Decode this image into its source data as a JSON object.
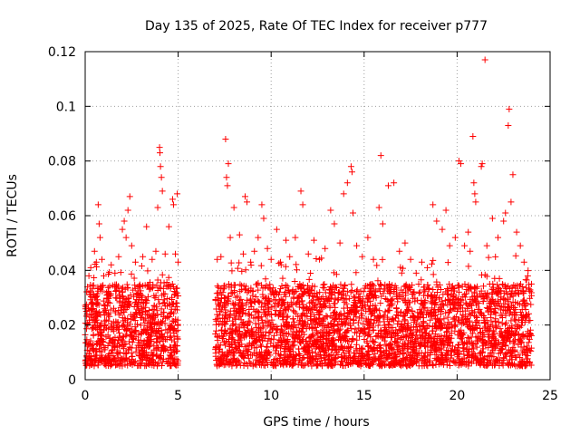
{
  "chart_data": {
    "type": "scatter",
    "title": "Day 135 of 2025, Rate Of TEC Index for receiver p777",
    "xlabel": "GPS time / hours",
    "ylabel": "ROTI / TECUs",
    "xlim": [
      0,
      25
    ],
    "ylim": [
      0,
      0.12
    ],
    "xticks": [
      0,
      5,
      10,
      15,
      20,
      25
    ],
    "yticks": [
      0,
      0.02,
      0.04,
      0.06,
      0.08,
      0.1,
      0.12
    ],
    "xtick_labels": [
      "0",
      "5",
      "10",
      "15",
      "20",
      "25"
    ],
    "ytick_labels": [
      "0",
      "0.02",
      "0.04",
      "0.06",
      "0.08",
      "0.1",
      "0.12"
    ],
    "grid": true,
    "marker": "+",
    "color": "#ff0000",
    "data_gap_hours": [
      5.0,
      7.0
    ],
    "series": [
      {
        "name": "ROTI",
        "points": [
          [
            0.1,
            0.024
          ],
          [
            0.2,
            0.038
          ],
          [
            0.3,
            0.041
          ],
          [
            0.4,
            0.028
          ],
          [
            0.5,
            0.047
          ],
          [
            0.6,
            0.043
          ],
          [
            0.7,
            0.064
          ],
          [
            0.75,
            0.057
          ],
          [
            0.8,
            0.052
          ],
          [
            0.9,
            0.044
          ],
          [
            1.0,
            0.038
          ],
          [
            1.2,
            0.031
          ],
          [
            1.4,
            0.042
          ],
          [
            1.6,
            0.039
          ],
          [
            1.8,
            0.045
          ],
          [
            2.0,
            0.055
          ],
          [
            2.1,
            0.058
          ],
          [
            2.2,
            0.052
          ],
          [
            2.3,
            0.062
          ],
          [
            2.4,
            0.067
          ],
          [
            2.5,
            0.049
          ],
          [
            2.7,
            0.043
          ],
          [
            2.9,
            0.034
          ],
          [
            3.1,
            0.045
          ],
          [
            3.3,
            0.056
          ],
          [
            3.6,
            0.044
          ],
          [
            3.8,
            0.047
          ],
          [
            3.9,
            0.063
          ],
          [
            4.0,
            0.085
          ],
          [
            4.02,
            0.083
          ],
          [
            4.05,
            0.078
          ],
          [
            4.1,
            0.074
          ],
          [
            4.15,
            0.069
          ],
          [
            4.3,
            0.046
          ],
          [
            4.5,
            0.056
          ],
          [
            4.7,
            0.066
          ],
          [
            4.75,
            0.064
          ],
          [
            4.85,
            0.046
          ],
          [
            4.95,
            0.068
          ],
          [
            5.0,
            0.043
          ],
          [
            7.1,
            0.044
          ],
          [
            7.3,
            0.045
          ],
          [
            7.55,
            0.088
          ],
          [
            7.6,
            0.074
          ],
          [
            7.65,
            0.071
          ],
          [
            7.7,
            0.079
          ],
          [
            7.8,
            0.052
          ],
          [
            8.0,
            0.063
          ],
          [
            8.3,
            0.053
          ],
          [
            8.5,
            0.046
          ],
          [
            8.6,
            0.067
          ],
          [
            8.7,
            0.065
          ],
          [
            8.9,
            0.043
          ],
          [
            9.1,
            0.047
          ],
          [
            9.3,
            0.052
          ],
          [
            9.5,
            0.064
          ],
          [
            9.6,
            0.059
          ],
          [
            9.8,
            0.048
          ],
          [
            10.0,
            0.044
          ],
          [
            10.3,
            0.055
          ],
          [
            10.5,
            0.043
          ],
          [
            10.8,
            0.051
          ],
          [
            11.0,
            0.045
          ],
          [
            11.3,
            0.052
          ],
          [
            11.6,
            0.069
          ],
          [
            11.7,
            0.064
          ],
          [
            12.0,
            0.046
          ],
          [
            12.3,
            0.051
          ],
          [
            12.6,
            0.044
          ],
          [
            12.9,
            0.048
          ],
          [
            13.2,
            0.062
          ],
          [
            13.4,
            0.057
          ],
          [
            13.7,
            0.05
          ],
          [
            13.9,
            0.068
          ],
          [
            14.1,
            0.072
          ],
          [
            14.3,
            0.078
          ],
          [
            14.35,
            0.076
          ],
          [
            14.4,
            0.061
          ],
          [
            14.6,
            0.049
          ],
          [
            14.9,
            0.045
          ],
          [
            15.2,
            0.052
          ],
          [
            15.5,
            0.044
          ],
          [
            15.8,
            0.063
          ],
          [
            15.9,
            0.082
          ],
          [
            16.0,
            0.057
          ],
          [
            16.3,
            0.071
          ],
          [
            16.6,
            0.072
          ],
          [
            16.9,
            0.047
          ],
          [
            17.2,
            0.05
          ],
          [
            17.5,
            0.044
          ],
          [
            17.8,
            0.039
          ],
          [
            18.1,
            0.043
          ],
          [
            18.4,
            0.041
          ],
          [
            18.7,
            0.064
          ],
          [
            18.9,
            0.058
          ],
          [
            19.2,
            0.055
          ],
          [
            19.4,
            0.062
          ],
          [
            19.6,
            0.049
          ],
          [
            19.9,
            0.052
          ],
          [
            20.1,
            0.08
          ],
          [
            20.2,
            0.079
          ],
          [
            20.4,
            0.049
          ],
          [
            20.6,
            0.054
          ],
          [
            20.7,
            0.047
          ],
          [
            20.85,
            0.089
          ],
          [
            20.9,
            0.072
          ],
          [
            20.95,
            0.068
          ],
          [
            21.0,
            0.065
          ],
          [
            21.3,
            0.078
          ],
          [
            21.35,
            0.079
          ],
          [
            21.5,
            0.117
          ],
          [
            21.6,
            0.049
          ],
          [
            21.9,
            0.059
          ],
          [
            22.2,
            0.052
          ],
          [
            22.5,
            0.058
          ],
          [
            22.6,
            0.061
          ],
          [
            22.75,
            0.093
          ],
          [
            22.8,
            0.099
          ],
          [
            22.9,
            0.065
          ],
          [
            23.0,
            0.075
          ],
          [
            23.2,
            0.054
          ],
          [
            23.4,
            0.049
          ],
          [
            23.6,
            0.043
          ],
          [
            23.8,
            0.038
          ],
          [
            24.0,
            0.035
          ]
        ],
        "typical_range": [
          0.005,
          0.035
        ]
      }
    ]
  }
}
